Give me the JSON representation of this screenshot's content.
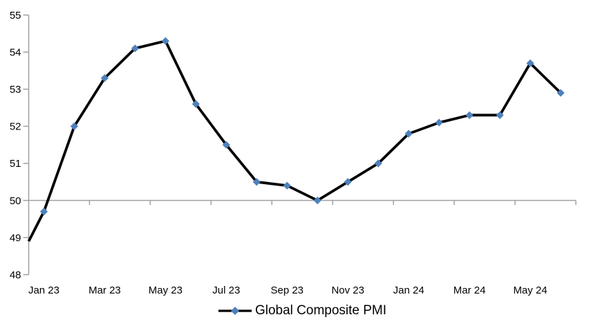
{
  "chart_data": {
    "type": "line",
    "title": "",
    "legend_label": "Global Composite PMI",
    "legend_position": "bottom",
    "categories": [
      "Jan 23",
      "Feb 23",
      "Mar 23",
      "Apr 23",
      "May 23",
      "Jun 23",
      "Jul 23",
      "Aug 23",
      "Sep 23",
      "Oct 23",
      "Nov 23",
      "Dec 23",
      "Jan 24",
      "Feb 24",
      "Mar 24",
      "Apr 24",
      "May 24",
      "Jun 24"
    ],
    "values": [
      49.7,
      52.0,
      53.3,
      54.1,
      54.3,
      52.6,
      51.5,
      50.5,
      50.4,
      50.0,
      50.5,
      51.0,
      51.8,
      52.1,
      52.3,
      52.3,
      53.7,
      52.9
    ],
    "edge_start_value": 48.9,
    "x_tick_labels_visible": [
      "Jan 23",
      "Mar 23",
      "May 23",
      "Jul 23",
      "Sep 23",
      "Nov 23",
      "Jan 24",
      "Mar 24",
      "May 24"
    ],
    "x_tick_label_every": 2,
    "y_ticks": [
      48,
      49,
      50,
      51,
      52,
      53,
      54,
      55
    ],
    "ylim": [
      48,
      55
    ],
    "axis_cross_value": 50,
    "grid": "off",
    "marker_shape": "diamond",
    "colors": {
      "line": "#000000",
      "marker": "#4E81BC",
      "axis": "#A0A0A0",
      "text": "#000000",
      "background": "#FFFFFF"
    }
  }
}
